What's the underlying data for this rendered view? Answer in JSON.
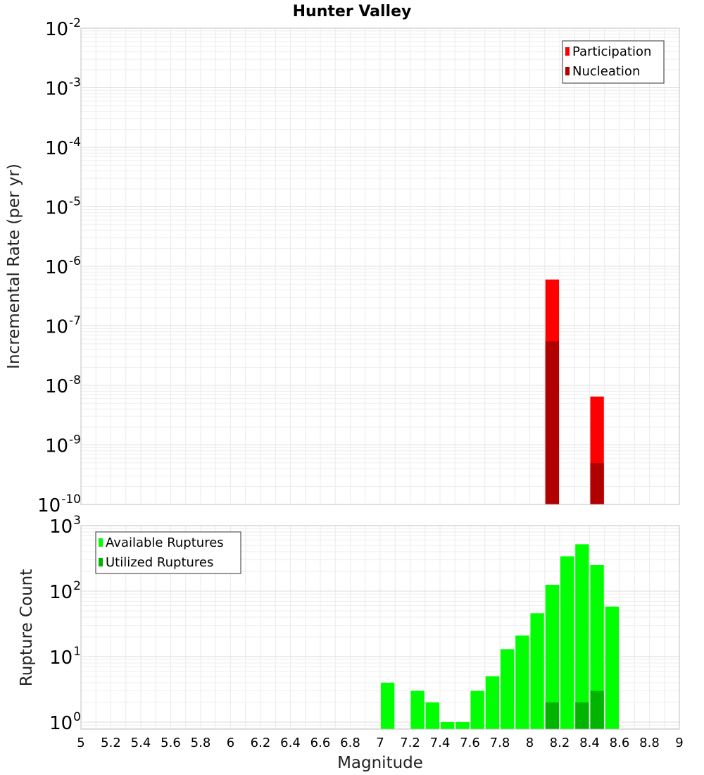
{
  "title": "Hunter Valley",
  "chart_data": [
    {
      "type": "bar",
      "yscale": "log",
      "ylabel": "Incremental Rate (per yr)",
      "ylim": [
        1e-10,
        0.01
      ],
      "xlim": [
        5,
        9
      ],
      "grid": true,
      "legend_position": "top-right",
      "ytick_labels": [
        {
          "base": "10",
          "exp": "-10"
        },
        {
          "base": "10",
          "exp": "-9"
        },
        {
          "base": "10",
          "exp": "-8"
        },
        {
          "base": "10",
          "exp": "-7"
        },
        {
          "base": "10",
          "exp": "-6"
        },
        {
          "base": "10",
          "exp": "-5"
        },
        {
          "base": "10",
          "exp": "-4"
        },
        {
          "base": "10",
          "exp": "-3"
        },
        {
          "base": "10",
          "exp": "-2"
        }
      ],
      "series": [
        {
          "name": "Participation",
          "color": "#ff0000",
          "x": [
            8.15,
            8.45
          ],
          "values": [
            6e-07,
            6.5e-09
          ]
        },
        {
          "name": "Nucleation",
          "color": "#b10000",
          "x": [
            8.15,
            8.45
          ],
          "values": [
            5.5e-08,
            5e-10
          ]
        }
      ]
    },
    {
      "type": "bar",
      "yscale": "log",
      "ylabel": "Rupture Count",
      "xlabel": "Magnitude",
      "ylim": [
        0.78,
        1000
      ],
      "xlim": [
        5,
        9
      ],
      "grid": true,
      "legend_position": "top-left",
      "ytick_labels": [
        {
          "base": "10",
          "exp": "0"
        },
        {
          "base": "10",
          "exp": "1"
        },
        {
          "base": "10",
          "exp": "2"
        },
        {
          "base": "10",
          "exp": "3"
        }
      ],
      "xtick_labels": [
        "5",
        "5.2",
        "5.4",
        "5.6",
        "5.8",
        "6",
        "6.2",
        "6.4",
        "6.6",
        "6.8",
        "7",
        "7.2",
        "7.4",
        "7.6",
        "7.8",
        "8",
        "8.2",
        "8.4",
        "8.6",
        "8.8",
        "9"
      ],
      "series": [
        {
          "name": "Available Ruptures",
          "color": "#00ff00",
          "x": [
            7.05,
            7.25,
            7.35,
            7.45,
            7.55,
            7.65,
            7.75,
            7.85,
            7.95,
            8.05,
            8.15,
            8.25,
            8.35,
            8.45,
            8.55
          ],
          "values": [
            4,
            3,
            2,
            1,
            1,
            3,
            5,
            13,
            21,
            46,
            125,
            340,
            520,
            250,
            58
          ]
        },
        {
          "name": "Utilized Ruptures",
          "color": "#00b400",
          "x": [
            8.15,
            8.35,
            8.45
          ],
          "values": [
            2,
            2,
            3
          ]
        }
      ]
    }
  ]
}
